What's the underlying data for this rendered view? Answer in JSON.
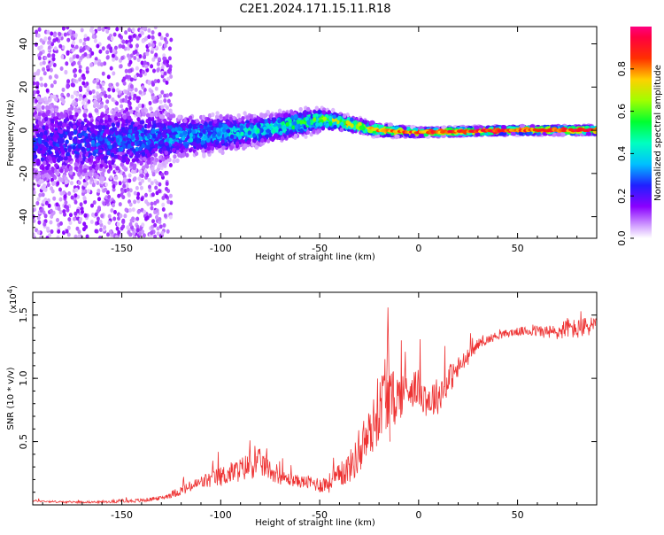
{
  "title": "C2E1.2024.171.15.11.R18",
  "chart_data": [
    {
      "type": "heatmap",
      "xlabel": "Height of straight line (km)",
      "ylabel": "Frequency (Hz)",
      "xlim": [
        -195,
        90
      ],
      "ylim": [
        -50,
        48
      ],
      "xticks": [
        -150,
        -100,
        -50,
        0,
        50
      ],
      "yticks": [
        -40,
        -20,
        0,
        20,
        40
      ],
      "colorbar": {
        "label": "Normalized spectral amplitude",
        "range": [
          0.0,
          1.0
        ],
        "ticks": [
          0.0,
          0.2,
          0.4,
          0.6,
          0.8
        ],
        "colormap": "rainbow (white-violet-blue-cyan-green-yellow-red-magenta)"
      },
      "frequency_trend": [
        {
          "x": -190,
          "center_hz": -6,
          "spread_hz": 25,
          "amplitude": 0.25
        },
        {
          "x": -150,
          "center_hz": -5,
          "spread_hz": 20,
          "amplitude": 0.3
        },
        {
          "x": -120,
          "center_hz": -3,
          "spread_hz": 12,
          "amplitude": 0.35
        },
        {
          "x": -80,
          "center_hz": 0,
          "spread_hz": 8,
          "amplitude": 0.45
        },
        {
          "x": -50,
          "center_hz": 5,
          "spread_hz": 6,
          "amplitude": 0.6
        },
        {
          "x": -40,
          "center_hz": 4,
          "spread_hz": 4,
          "amplitude": 0.7
        },
        {
          "x": -20,
          "center_hz": 0,
          "spread_hz": 3,
          "amplitude": 0.85
        },
        {
          "x": 0,
          "center_hz": -1,
          "spread_hz": 2,
          "amplitude": 0.9
        },
        {
          "x": 50,
          "center_hz": 0,
          "spread_hz": 2,
          "amplitude": 0.95
        },
        {
          "x": 88,
          "center_hz": 0,
          "spread_hz": 2,
          "amplitude": 0.95
        }
      ],
      "grid": false
    },
    {
      "type": "line",
      "xlabel": "Height of straight line (km)",
      "ylabel": "SNR (10 * v/v)",
      "y_multiplier": "(x10",
      "y_multiplier_exp": "4",
      "y_multiplier_close": ")",
      "xlim": [
        -195,
        90
      ],
      "ylim": [
        0,
        1.68
      ],
      "xticks": [
        -150,
        -100,
        -50,
        0,
        50
      ],
      "yticks": [
        0.5,
        1.0,
        1.5
      ],
      "ytick_labels": [
        "0.5",
        "1.0",
        "1.5"
      ],
      "series": [
        {
          "color": "#ee3333",
          "x": [
            -195,
            -180,
            -160,
            -140,
            -130,
            -120,
            -110,
            -100,
            -90,
            -85,
            -80,
            -75,
            -70,
            -60,
            -55,
            -50,
            -45,
            -40,
            -35,
            -30,
            -25,
            -20,
            -17,
            -15,
            -10,
            -5,
            0,
            5,
            10,
            15,
            20,
            25,
            30,
            40,
            50,
            60,
            70,
            75,
            80,
            88
          ],
          "y": [
            0.03,
            0.02,
            0.02,
            0.03,
            0.05,
            0.1,
            0.16,
            0.2,
            0.25,
            0.28,
            0.3,
            0.25,
            0.2,
            0.17,
            0.16,
            0.14,
            0.15,
            0.2,
            0.26,
            0.35,
            0.5,
            0.65,
            0.85,
            0.75,
            0.8,
            0.88,
            0.88,
            0.78,
            0.82,
            0.95,
            1.05,
            1.15,
            1.26,
            1.33,
            1.36,
            1.36,
            1.34,
            1.38,
            1.36,
            1.4
          ],
          "noise": [
            0.01,
            0.01,
            0.01,
            0.02,
            0.02,
            0.05,
            0.07,
            0.1,
            0.12,
            0.14,
            0.14,
            0.1,
            0.07,
            0.06,
            0.07,
            0.08,
            0.1,
            0.12,
            0.16,
            0.2,
            0.25,
            0.3,
            0.35,
            0.3,
            0.25,
            0.2,
            0.18,
            0.2,
            0.18,
            0.15,
            0.12,
            0.08,
            0.05,
            0.04,
            0.04,
            0.06,
            0.08,
            0.1,
            0.1,
            0.1
          ],
          "max_annotated_y": 1.56
        }
      ],
      "grid": false
    }
  ]
}
